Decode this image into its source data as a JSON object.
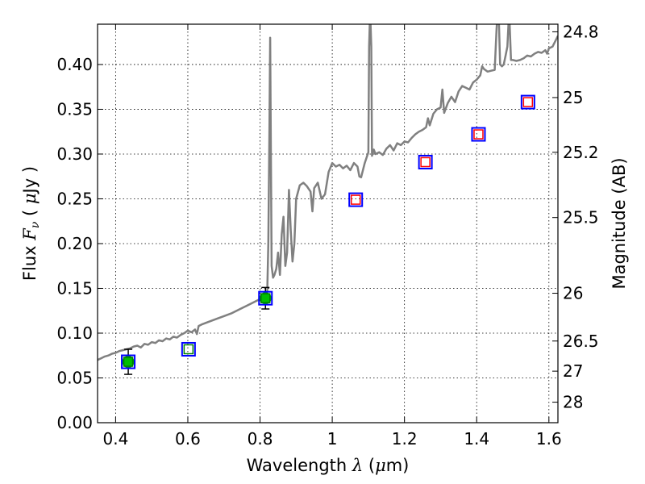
{
  "chart_data": {
    "type": "scatter",
    "xlabel": "Wavelength  λ (μm)",
    "ylabel": "Flux  Fν ( μJy )",
    "ylabel2": "Magnitude (AB)",
    "xlim": [
      0.35,
      1.625
    ],
    "ylim": [
      0.0,
      0.445
    ],
    "grid": true,
    "x_ticks": [
      {
        "value": 0.4,
        "label": "0.4"
      },
      {
        "value": 0.6,
        "label": "0.6"
      },
      {
        "value": 0.8,
        "label": "0.8"
      },
      {
        "value": 1.0,
        "label": "1"
      },
      {
        "value": 1.2,
        "label": "1.2"
      },
      {
        "value": 1.4,
        "label": "1.4"
      },
      {
        "value": 1.6,
        "label": "1.6"
      }
    ],
    "y_ticks": [
      {
        "value": 0.0,
        "label": "0.00"
      },
      {
        "value": 0.05,
        "label": "0.05"
      },
      {
        "value": 0.1,
        "label": "0.10"
      },
      {
        "value": 0.15,
        "label": "0.15"
      },
      {
        "value": 0.2,
        "label": "0.20"
      },
      {
        "value": 0.25,
        "label": "0.25"
      },
      {
        "value": 0.3,
        "label": "0.30"
      },
      {
        "value": 0.35,
        "label": "0.35"
      },
      {
        "value": 0.4,
        "label": "0.40"
      }
    ],
    "mag_ticks": [
      {
        "mag": 24.8,
        "label": "24.8"
      },
      {
        "mag": 25.0,
        "label": "25"
      },
      {
        "mag": 25.2,
        "label": "25.2"
      },
      {
        "mag": 25.5,
        "label": "25.5"
      },
      {
        "mag": 26.0,
        "label": "26"
      },
      {
        "mag": 26.5,
        "label": "26.5"
      },
      {
        "mag": 27.0,
        "label": "27"
      },
      {
        "mag": 28.0,
        "label": "28"
      }
    ],
    "series": [
      {
        "kind": "model-spectrum",
        "color": "#808080",
        "points": [
          [
            0.35,
            0.07
          ],
          [
            0.36,
            0.072
          ],
          [
            0.37,
            0.074
          ],
          [
            0.38,
            0.075
          ],
          [
            0.39,
            0.077
          ],
          [
            0.4,
            0.078
          ],
          [
            0.41,
            0.08
          ],
          [
            0.42,
            0.081
          ],
          [
            0.43,
            0.082
          ],
          [
            0.44,
            0.083
          ],
          [
            0.45,
            0.085
          ],
          [
            0.46,
            0.086
          ],
          [
            0.47,
            0.084
          ],
          [
            0.48,
            0.088
          ],
          [
            0.49,
            0.087
          ],
          [
            0.5,
            0.09
          ],
          [
            0.51,
            0.089
          ],
          [
            0.52,
            0.092
          ],
          [
            0.53,
            0.091
          ],
          [
            0.54,
            0.094
          ],
          [
            0.55,
            0.093
          ],
          [
            0.56,
            0.096
          ],
          [
            0.57,
            0.095
          ],
          [
            0.58,
            0.098
          ],
          [
            0.59,
            0.1
          ],
          [
            0.6,
            0.103
          ],
          [
            0.61,
            0.101
          ],
          [
            0.62,
            0.104
          ],
          [
            0.625,
            0.099
          ],
          [
            0.63,
            0.108
          ],
          [
            0.64,
            0.11
          ],
          [
            0.66,
            0.113
          ],
          [
            0.68,
            0.116
          ],
          [
            0.7,
            0.119
          ],
          [
            0.72,
            0.122
          ],
          [
            0.74,
            0.126
          ],
          [
            0.76,
            0.13
          ],
          [
            0.78,
            0.134
          ],
          [
            0.8,
            0.138
          ],
          [
            0.81,
            0.14
          ],
          [
            0.815,
            0.142
          ],
          [
            0.82,
            0.147
          ],
          [
            0.823,
            0.2
          ],
          [
            0.826,
            0.33
          ],
          [
            0.828,
            0.43
          ],
          [
            0.83,
            0.3
          ],
          [
            0.832,
            0.175
          ],
          [
            0.836,
            0.162
          ],
          [
            0.84,
            0.165
          ],
          [
            0.845,
            0.172
          ],
          [
            0.85,
            0.19
          ],
          [
            0.855,
            0.165
          ],
          [
            0.86,
            0.21
          ],
          [
            0.865,
            0.23
          ],
          [
            0.87,
            0.175
          ],
          [
            0.875,
            0.19
          ],
          [
            0.88,
            0.26
          ],
          [
            0.885,
            0.215
          ],
          [
            0.89,
            0.18
          ],
          [
            0.895,
            0.2
          ],
          [
            0.9,
            0.25
          ],
          [
            0.91,
            0.265
          ],
          [
            0.92,
            0.268
          ],
          [
            0.93,
            0.264
          ],
          [
            0.94,
            0.258
          ],
          [
            0.945,
            0.236
          ],
          [
            0.95,
            0.262
          ],
          [
            0.96,
            0.268
          ],
          [
            0.97,
            0.25
          ],
          [
            0.98,
            0.255
          ],
          [
            0.99,
            0.28
          ],
          [
            1.0,
            0.29
          ],
          [
            1.01,
            0.286
          ],
          [
            1.02,
            0.288
          ],
          [
            1.03,
            0.284
          ],
          [
            1.04,
            0.287
          ],
          [
            1.05,
            0.282
          ],
          [
            1.06,
            0.29
          ],
          [
            1.07,
            0.286
          ],
          [
            1.075,
            0.275
          ],
          [
            1.08,
            0.274
          ],
          [
            1.09,
            0.29
          ],
          [
            1.1,
            0.302
          ],
          [
            1.102,
            0.42
          ],
          [
            1.105,
            0.46
          ],
          [
            1.108,
            0.42
          ],
          [
            1.11,
            0.298
          ],
          [
            1.115,
            0.305
          ],
          [
            1.12,
            0.3
          ],
          [
            1.13,
            0.302
          ],
          [
            1.14,
            0.299
          ],
          [
            1.15,
            0.306
          ],
          [
            1.16,
            0.31
          ],
          [
            1.17,
            0.304
          ],
          [
            1.18,
            0.312
          ],
          [
            1.19,
            0.31
          ],
          [
            1.2,
            0.314
          ],
          [
            1.21,
            0.313
          ],
          [
            1.22,
            0.318
          ],
          [
            1.23,
            0.322
          ],
          [
            1.24,
            0.325
          ],
          [
            1.25,
            0.327
          ],
          [
            1.26,
            0.33
          ],
          [
            1.265,
            0.34
          ],
          [
            1.27,
            0.332
          ],
          [
            1.28,
            0.345
          ],
          [
            1.29,
            0.35
          ],
          [
            1.3,
            0.352
          ],
          [
            1.305,
            0.372
          ],
          [
            1.31,
            0.346
          ],
          [
            1.32,
            0.357
          ],
          [
            1.33,
            0.364
          ],
          [
            1.34,
            0.358
          ],
          [
            1.35,
            0.37
          ],
          [
            1.36,
            0.376
          ],
          [
            1.37,
            0.374
          ],
          [
            1.38,
            0.372
          ],
          [
            1.39,
            0.38
          ],
          [
            1.4,
            0.383
          ],
          [
            1.41,
            0.388
          ],
          [
            1.415,
            0.398
          ],
          [
            1.42,
            0.395
          ],
          [
            1.43,
            0.392
          ],
          [
            1.44,
            0.393
          ],
          [
            1.45,
            0.394
          ],
          [
            1.455,
            0.44
          ],
          [
            1.46,
            0.47
          ],
          [
            1.465,
            0.4
          ],
          [
            1.47,
            0.398
          ],
          [
            1.475,
            0.4
          ],
          [
            1.48,
            0.41
          ],
          [
            1.485,
            0.42
          ],
          [
            1.49,
            0.46
          ],
          [
            1.495,
            0.405
          ],
          [
            1.5,
            0.405
          ],
          [
            1.51,
            0.404
          ],
          [
            1.52,
            0.405
          ],
          [
            1.53,
            0.407
          ],
          [
            1.54,
            0.41
          ],
          [
            1.55,
            0.409
          ],
          [
            1.56,
            0.412
          ],
          [
            1.57,
            0.414
          ],
          [
            1.58,
            0.413
          ],
          [
            1.59,
            0.416
          ],
          [
            1.595,
            0.412
          ],
          [
            1.6,
            0.418
          ],
          [
            1.61,
            0.42
          ],
          [
            1.62,
            0.428
          ],
          [
            1.625,
            0.432
          ]
        ]
      },
      {
        "kind": "observed-blue-squares",
        "color": "#0000ff",
        "points": [
          [
            0.435,
            0.068
          ],
          [
            0.602,
            0.082
          ],
          [
            0.815,
            0.139
          ],
          [
            1.065,
            0.249
          ],
          [
            1.258,
            0.291
          ],
          [
            1.405,
            0.322
          ],
          [
            1.542,
            0.358
          ]
        ]
      },
      {
        "kind": "model-red-squares",
        "color": "#ff0000",
        "points": [
          [
            1.065,
            0.249
          ],
          [
            1.258,
            0.291
          ],
          [
            1.405,
            0.322
          ],
          [
            1.542,
            0.358
          ]
        ]
      },
      {
        "kind": "model-green-squares",
        "color": "#008000",
        "points": [
          [
            0.435,
            0.068
          ],
          [
            0.602,
            0.082
          ],
          [
            0.815,
            0.139
          ]
        ]
      },
      {
        "kind": "detections-green-circles",
        "color": "#00bf00",
        "points": [
          {
            "x": 0.435,
            "y": 0.068,
            "err": 0.014
          },
          {
            "x": 0.815,
            "y": 0.139,
            "err": 0.012
          }
        ]
      }
    ]
  }
}
